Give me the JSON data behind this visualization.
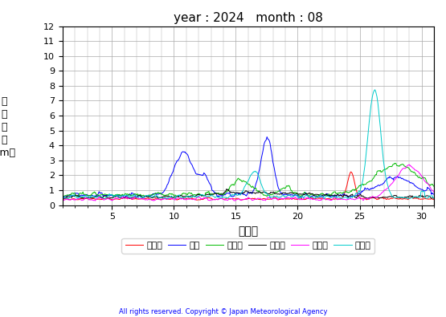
{
  "title": "year : 2024   month : 08",
  "ylabel_chars": [
    "有",
    "義",
    "波",
    "高",
    "（m）"
  ],
  "xlabel": "（日）",
  "ylim": [
    0,
    12
  ],
  "yticks": [
    0,
    1,
    2,
    3,
    4,
    5,
    6,
    7,
    8,
    9,
    10,
    11,
    12
  ],
  "xlim": [
    1,
    31
  ],
  "xticks": [
    5,
    10,
    15,
    20,
    25,
    30
  ],
  "copyright": "All rights reserved. Copyright © Japan Meteorological Agency",
  "stations": [
    "上ノ国",
    "唐桑",
    "石廠崎",
    "経ヶ岸",
    "生月島",
    "屋久島"
  ],
  "colors": [
    "#ff0000",
    "#0000ff",
    "#00bb00",
    "#000000",
    "#ff00ff",
    "#00cccc"
  ],
  "n_points": 744,
  "background_color": "#ffffff",
  "grid_color": "#aaaaaa",
  "figsize": [
    5.55,
    3.95
  ],
  "dpi": 100
}
